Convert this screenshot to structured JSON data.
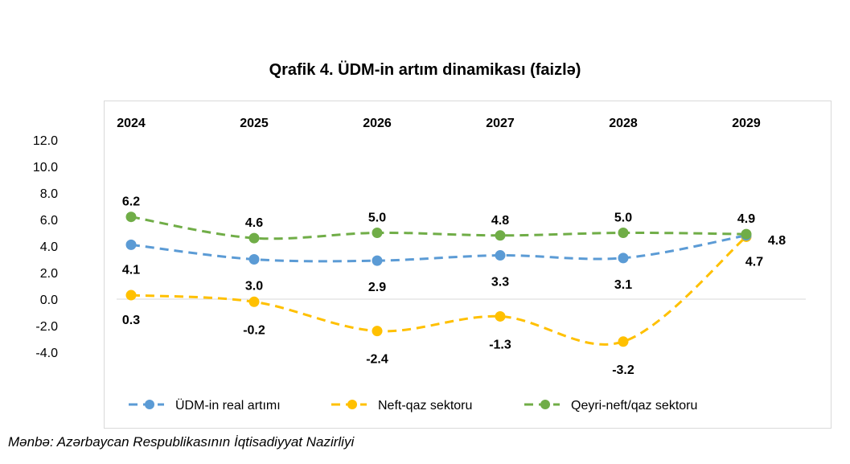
{
  "chart_data": {
    "type": "line",
    "title": "Qrafik 4. ÜDM-in artım dinamikası (faizlə)",
    "categories": [
      "2024",
      "2025",
      "2026",
      "2027",
      "2028",
      "2029"
    ],
    "ylim": [
      -4,
      12
    ],
    "yticks": [
      "12.0",
      "10.0",
      "8.0",
      "6.0",
      "4.0",
      "2.0",
      "0.0",
      "-2.0",
      "-4.0"
    ],
    "grid": false,
    "legend": "bottom",
    "series": [
      {
        "name": "ÜDM-in real artımı",
        "color": "#5b9bd5",
        "values": [
          4.1,
          3.0,
          2.9,
          3.3,
          3.1,
          4.8
        ]
      },
      {
        "name": "Neft-qaz sektoru",
        "color": "#ffc000",
        "values": [
          0.3,
          -0.2,
          -2.4,
          -1.3,
          -3.2,
          4.7
        ]
      },
      {
        "name": "Qeyri-neft/qaz sektoru",
        "color": "#70ad47",
        "values": [
          6.2,
          4.6,
          5.0,
          4.8,
          5.0,
          4.9
        ]
      }
    ]
  },
  "source": "Mənbə: Azərbaycan Respublikasının İqtisadiyyat Nazirliyi"
}
